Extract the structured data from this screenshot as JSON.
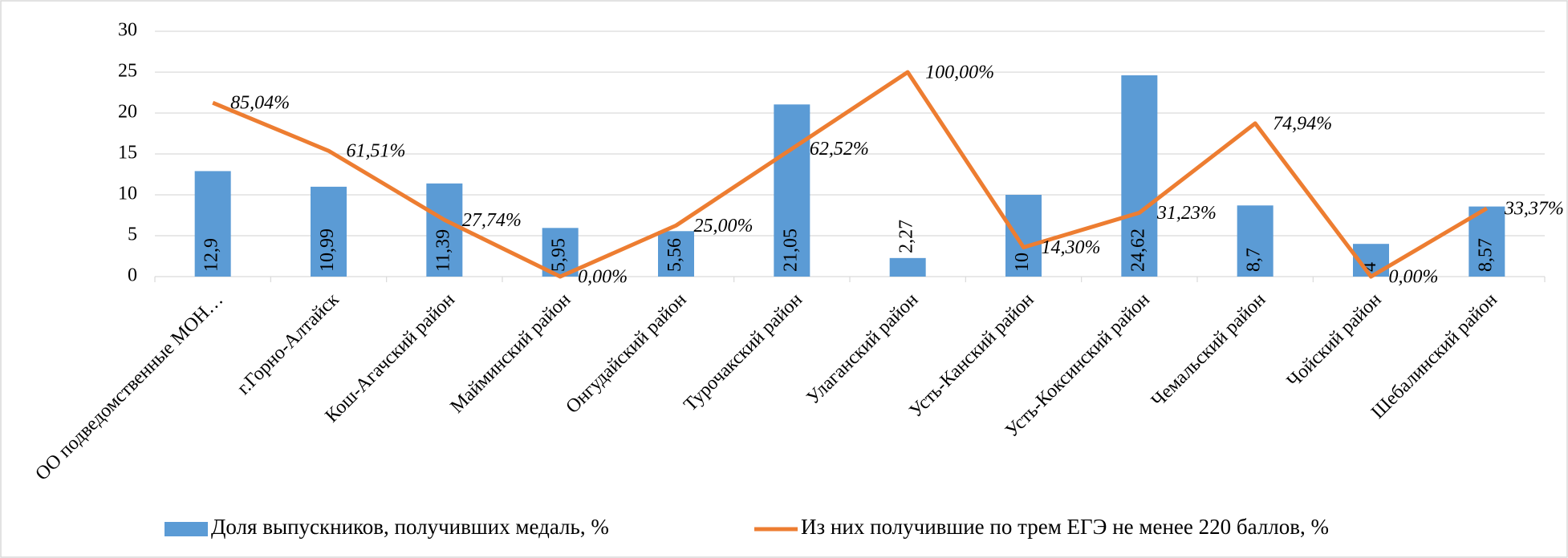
{
  "chart_data": {
    "type": "bar_line",
    "categories": [
      "ОО подведомственные МОН…",
      "г.Горно-Алтайск",
      "Кош-Агачский район",
      "Майминский район",
      "Онгудайский район",
      "Турочакский район",
      "Улаганский район",
      "Усть-Канский район",
      "Усть-Коксинский район",
      "Чемальский район",
      "Чойский район",
      "Шебалинский район"
    ],
    "series": [
      {
        "name": "Доля выпускников, получивших медаль, %",
        "type": "bar",
        "color": "#5b9bd5",
        "values": [
          12.9,
          10.99,
          11.39,
          5.95,
          5.56,
          21.05,
          2.27,
          10,
          24.62,
          8.7,
          4,
          8.57
        ],
        "value_labels": [
          "12,9",
          "10,99",
          "11,39",
          "5,95",
          "5,56",
          "21,05",
          "2,27",
          "10",
          "24,62",
          "8,7",
          "4",
          "8,57"
        ]
      },
      {
        "name": "Из них получившие по трем ЕГЭ не менее 220 баллов, %",
        "type": "line",
        "color": "#ed7d31",
        "axis": "y2",
        "values": [
          85.04,
          61.51,
          27.74,
          0,
          25,
          62.52,
          100,
          14.3,
          31.23,
          74.94,
          0,
          33.37
        ],
        "value_labels": [
          "85,04%",
          "61,51%",
          "27,74%",
          "0,00%",
          "25,00%",
          "62,52%",
          "100,00%",
          "14,30%",
          "31,23%",
          "74,94%",
          "0,00%",
          "33,37%"
        ]
      }
    ],
    "ylim": [
      0,
      30
    ],
    "yticks": [
      0,
      5,
      10,
      15,
      20,
      25,
      30
    ],
    "y2lim": [
      0,
      120
    ],
    "grid": true,
    "legend": "bottom"
  }
}
